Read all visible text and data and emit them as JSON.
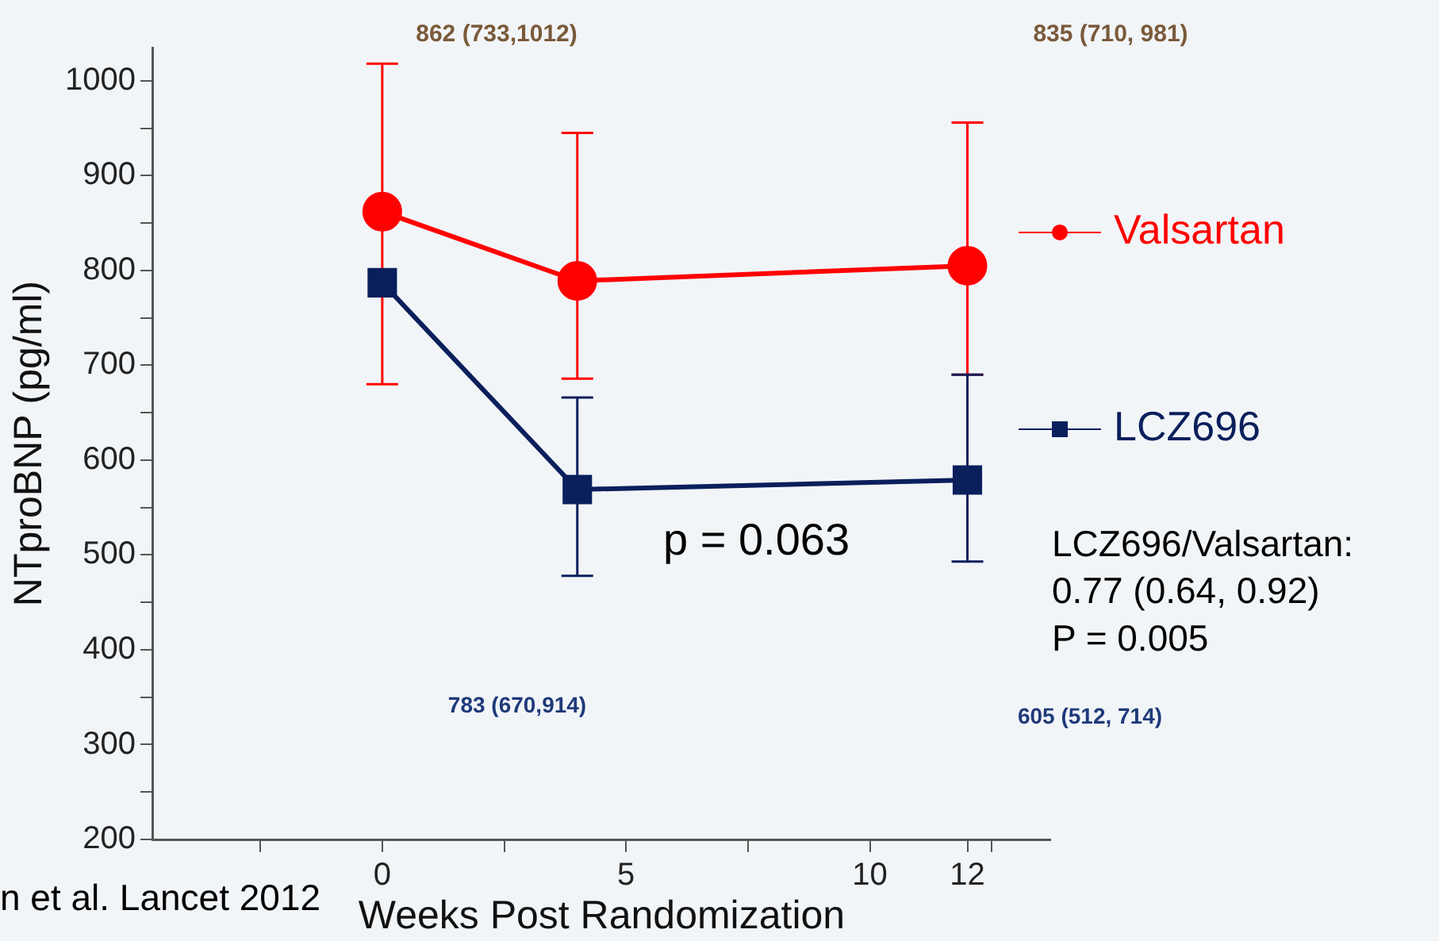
{
  "chart_data": {
    "type": "line",
    "xlabel": "Weeks Post Randomization",
    "ylabel": "NTproBNP (pg/ml)",
    "xlim": [
      -4.7,
      13.7
    ],
    "xticks": [
      {
        "value": -2.5,
        "label": null
      },
      0,
      {
        "value": 2.5,
        "label": null
      },
      5,
      {
        "value": 7.5,
        "label": null
      },
      10,
      12,
      {
        "value": 12.5,
        "label": null
      }
    ],
    "ylim": [
      200,
      1035
    ],
    "yticks": [
      200,
      {
        "value": 250,
        "label": null
      },
      300,
      {
        "value": 350,
        "label": null
      },
      400,
      {
        "value": 450,
        "label": null
      },
      500,
      {
        "value": 550,
        "label": null
      },
      600,
      {
        "value": 650,
        "label": null
      },
      700,
      {
        "value": 750,
        "label": null
      },
      800,
      {
        "value": 850,
        "label": null
      },
      900,
      {
        "value": 950,
        "label": null
      },
      1000
    ],
    "x": [
      0,
      4,
      12
    ],
    "grid": false,
    "legend": "right",
    "series": [
      {
        "name": "Valsartan",
        "color": "#ff0000",
        "marker": "circle",
        "values": [
          862,
          789,
          805
        ],
        "errors": [
          [
            680,
            1018
          ],
          [
            686,
            945
          ],
          [
            690,
            956
          ]
        ]
      },
      {
        "name": "LCZ696",
        "color": "#0a1f5c",
        "marker": "square",
        "values": [
          787,
          569,
          579
        ],
        "errors": [
          null,
          [
            478,
            666
          ],
          [
            493,
            690
          ]
        ]
      }
    ],
    "annotations": [
      "862 (733,1012)",
      "835 (710, 981)",
      "783 (670,914)",
      "605 (512, 714)",
      "p = 0.063",
      "LCZ696/Valsartan:\n0.77 (0.64, 0.92)\nP = 0.005",
      "n et al. Lancet 2012"
    ]
  }
}
